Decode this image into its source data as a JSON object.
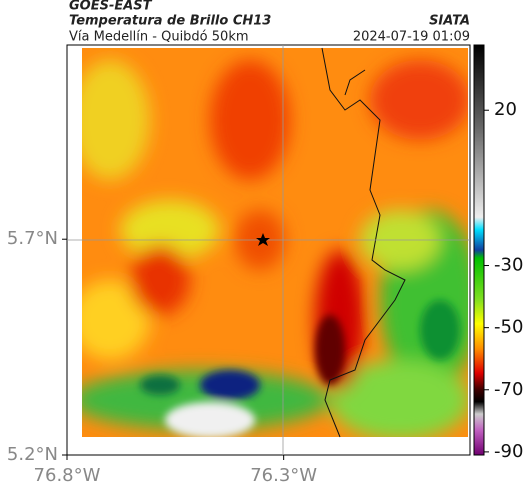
{
  "header": {
    "satellite": "GOES-EAST",
    "product": "Temperatura de Brillo CH13",
    "source": "SIATA",
    "region": "Vía Medellín - Quibdó 50km",
    "datetime": "2024-07-19 01:09"
  },
  "map": {
    "lonlim": [
      -76.8,
      -75.87
    ],
    "latlim": [
      5.2,
      6.15
    ],
    "lon_ticks": [
      {
        "value": -76.8,
        "label": "76.8°W"
      },
      {
        "value": -76.3,
        "label": "76.3°W"
      }
    ],
    "lat_ticks": [
      {
        "value": 5.7,
        "label": "5.7°N"
      },
      {
        "value": 5.2,
        "label": "5.2°N"
      }
    ]
  },
  "colorbar": {
    "lim": [
      41,
      -91
    ],
    "ticks": [
      20,
      -30,
      -50,
      -70,
      -90
    ]
  }
}
